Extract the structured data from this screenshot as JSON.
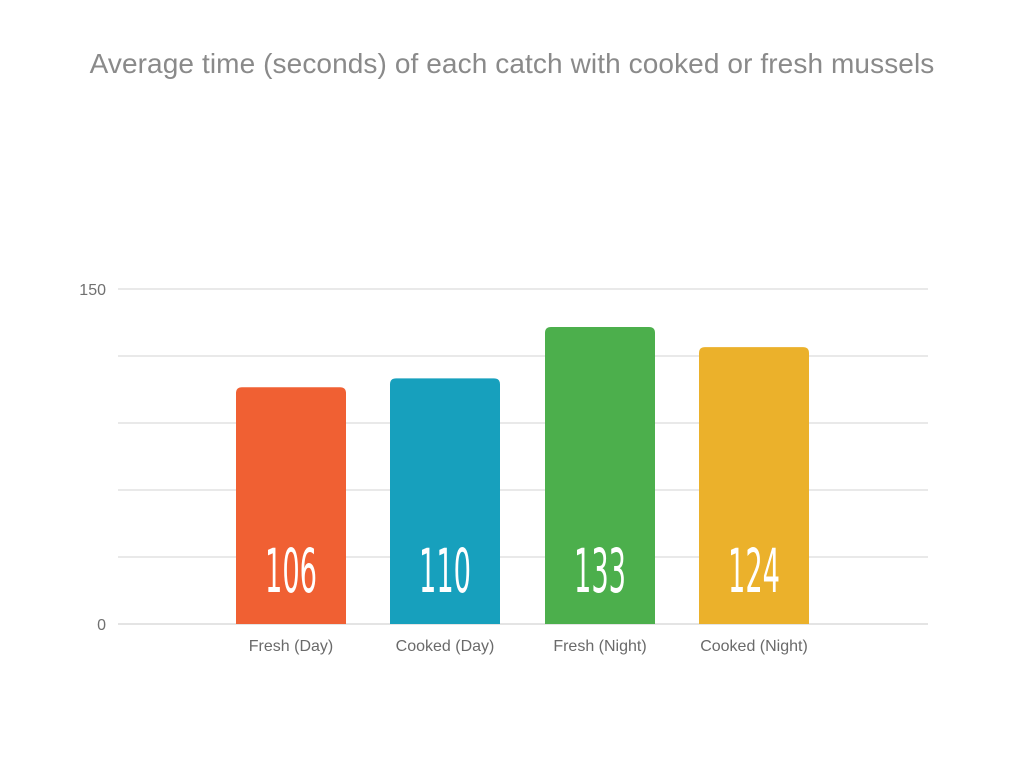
{
  "chart_data": {
    "type": "bar",
    "title": "Average time (seconds) of each catch with cooked or fresh mussels",
    "xlabel": "",
    "ylabel": "",
    "categories": [
      "Fresh (Day)",
      "Cooked (Day)",
      "Fresh (Night)",
      "Cooked (Night)"
    ],
    "values": [
      106,
      110,
      133,
      124
    ],
    "data_labels": [
      "106",
      "110",
      "133",
      "124"
    ],
    "colors": [
      "#f06033",
      "#17a0bd",
      "#4caf4c",
      "#ebb12b"
    ],
    "ylim": [
      0,
      150
    ],
    "yticks": [
      0,
      150
    ],
    "ytick_labels": [
      "0",
      "150"
    ],
    "gridlines": [
      0,
      30,
      60,
      90,
      120,
      150
    ],
    "grid": true,
    "legend": "none"
  }
}
